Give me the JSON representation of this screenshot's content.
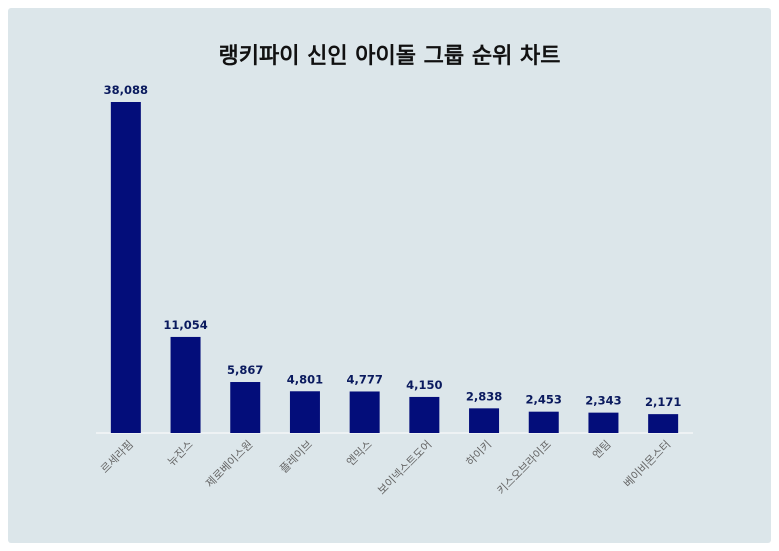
{
  "colors": {
    "background": "#dce6ea",
    "bar": "#030d7a",
    "label": "#0a1a5e",
    "tick": "#666666"
  },
  "chart_data": {
    "type": "bar",
    "title": "랭키파이 신인 아이돌 그룹 순위 차트",
    "xlabel": "",
    "ylabel": "",
    "ylim": [
      0,
      40000
    ],
    "grid": false,
    "categories": [
      "르세라핌",
      "뉴진스",
      "제로베이스원",
      "플레이브",
      "엔믹스",
      "보이넥스트도어",
      "하이키",
      "키스오브라이프",
      "엔팀",
      "베이비몬스터"
    ],
    "values": [
      38088,
      11054,
      5867,
      4801,
      4777,
      4150,
      2838,
      2453,
      2343,
      2171
    ],
    "value_labels": [
      "38,088",
      "11,054",
      "5,867",
      "4,801",
      "4,777",
      "4,150",
      "2,838",
      "2,453",
      "2,343",
      "2,171"
    ]
  }
}
